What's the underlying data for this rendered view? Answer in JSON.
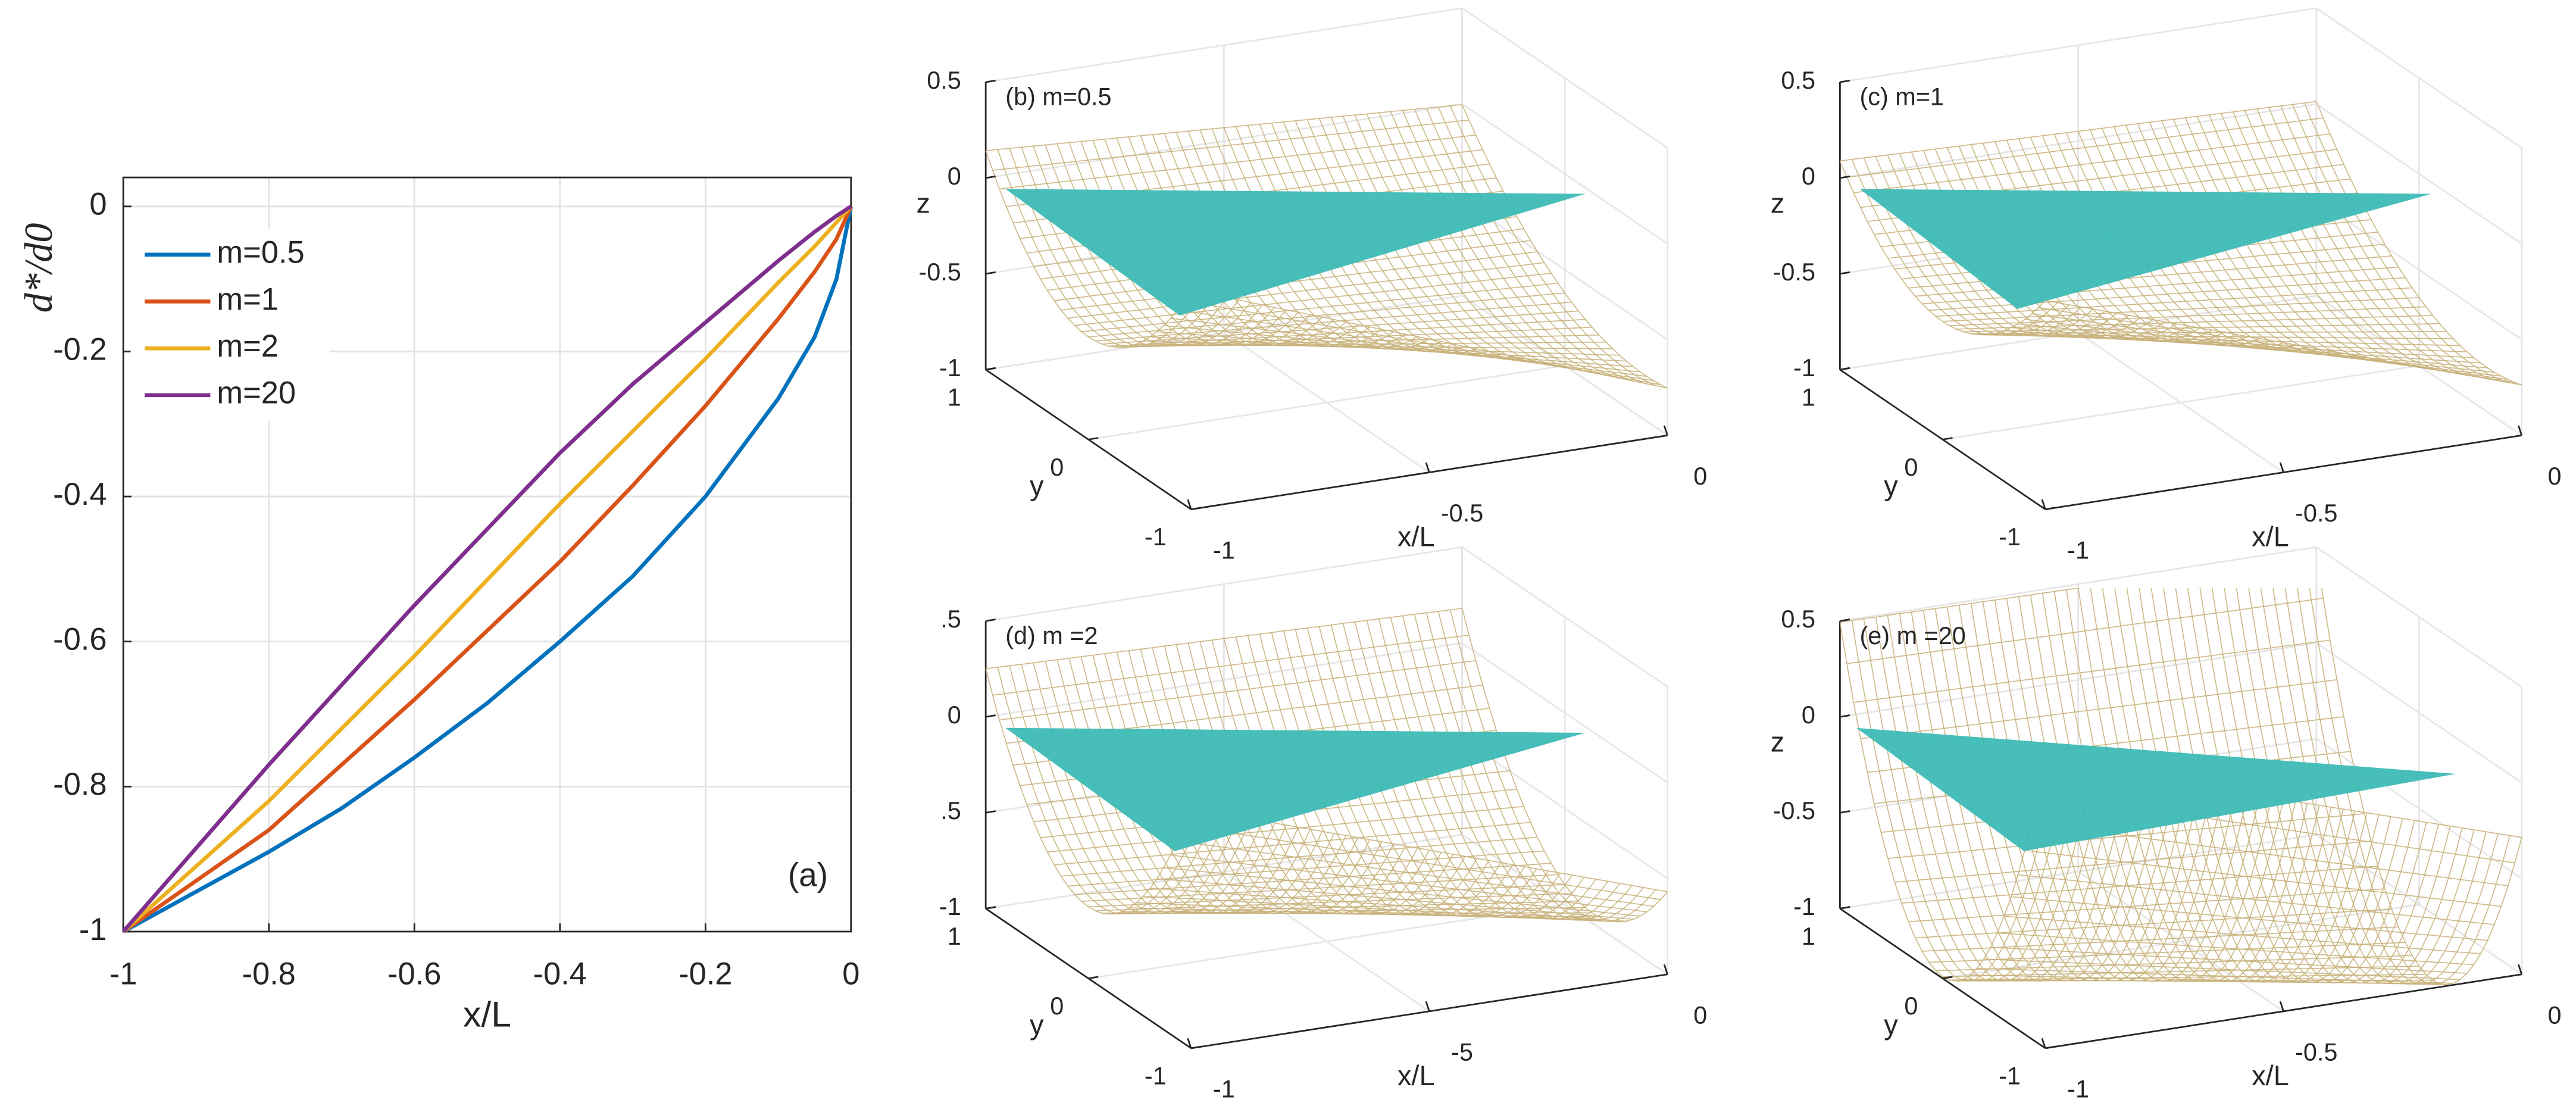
{
  "chart_data": [
    {
      "type": "line",
      "xlabel": "x/L",
      "ylabel": "d*/d0",
      "annotation": "(a)",
      "x": [
        -1,
        -0.9,
        -0.8,
        -0.7,
        -0.6,
        -0.5,
        -0.4,
        -0.3,
        -0.2,
        -0.1,
        -0.05,
        -0.02,
        0
      ],
      "series": [
        {
          "name": "m=0.5",
          "color": "#0072bd",
          "values": [
            -1,
            -0.945,
            -0.89,
            -0.83,
            -0.76,
            -0.685,
            -0.6,
            -0.51,
            -0.4,
            -0.265,
            -0.18,
            -0.1,
            0
          ]
        },
        {
          "name": "m=1",
          "color": "#d95319",
          "values": [
            -1,
            -0.93,
            -0.86,
            -0.77,
            -0.68,
            -0.585,
            -0.49,
            -0.385,
            -0.275,
            -0.155,
            -0.09,
            -0.045,
            0
          ]
        },
        {
          "name": "m=2",
          "color": "#edb120",
          "values": [
            -1,
            -0.91,
            -0.82,
            -0.72,
            -0.62,
            -0.515,
            -0.41,
            -0.31,
            -0.21,
            -0.105,
            -0.055,
            -0.022,
            0
          ]
        },
        {
          "name": "m=20",
          "color": "#7e2f8e",
          "values": [
            -1,
            -0.885,
            -0.77,
            -0.66,
            -0.55,
            -0.445,
            -0.34,
            -0.245,
            -0.16,
            -0.075,
            -0.035,
            -0.013,
            0
          ]
        }
      ],
      "xlim": [
        -1,
        0
      ],
      "ylim": [
        -1,
        0.04
      ],
      "xticks": [
        -1,
        -0.8,
        -0.6,
        -0.4,
        -0.2,
        0
      ],
      "yticks": [
        -1,
        -0.8,
        -0.6,
        -0.4,
        -0.2,
        0
      ],
      "grid": true,
      "legend": "upper-left"
    },
    {
      "type": "surface3d",
      "title": "(b) m=0.5",
      "zlabel": "z",
      "ylabel": "y",
      "xlabel": "x/L",
      "xlim": [
        -1,
        0
      ],
      "ylim": [
        -1,
        1
      ],
      "zlim": [
        -1,
        0.5
      ],
      "xticks": [
        -1,
        -0.5,
        0
      ],
      "yticks": [
        -1,
        0,
        1
      ],
      "zticks": [
        -1,
        -0.5,
        0,
        0.5
      ]
    },
    {
      "type": "surface3d",
      "title": "(c) m=1",
      "zlabel": "z",
      "ylabel": "y",
      "xlabel": "x/L",
      "xlim": [
        -1,
        0
      ],
      "ylim": [
        -1,
        1
      ],
      "zlim": [
        -1,
        0.5
      ],
      "xticks": [
        -1,
        -0.5,
        0
      ],
      "yticks": [
        -1,
        0,
        1
      ],
      "zticks": [
        -1,
        -0.5,
        0,
        0.5
      ]
    },
    {
      "type": "surface3d",
      "title": "(d) m =2",
      "ylabel": "y",
      "xlabel": "x/L",
      "xlim": [
        -1,
        0
      ],
      "ylim": [
        -1,
        1
      ],
      "zlim": [
        -1,
        0.5
      ],
      "xticks": [
        -1,
        {
          "value": -0.5,
          "label": "-5"
        },
        0
      ],
      "yticks": [
        -1,
        0,
        1
      ],
      "zticks": [
        -1,
        {
          "value": -0.5,
          "label": ".5"
        },
        0,
        {
          "value": 0.5,
          "label": ".5"
        }
      ]
    },
    {
      "type": "surface3d",
      "title": "(e) m =20",
      "zlabel": "z",
      "ylabel": "y",
      "xlabel": "x/L",
      "xlim": [
        -1,
        0
      ],
      "ylim": [
        -1,
        1
      ],
      "zlim": [
        -1,
        0.5
      ],
      "xticks": [
        -1,
        -0.5,
        0
      ],
      "yticks": [
        -1,
        0,
        1
      ],
      "zticks": [
        -1,
        -0.5,
        0,
        0.5
      ]
    }
  ]
}
